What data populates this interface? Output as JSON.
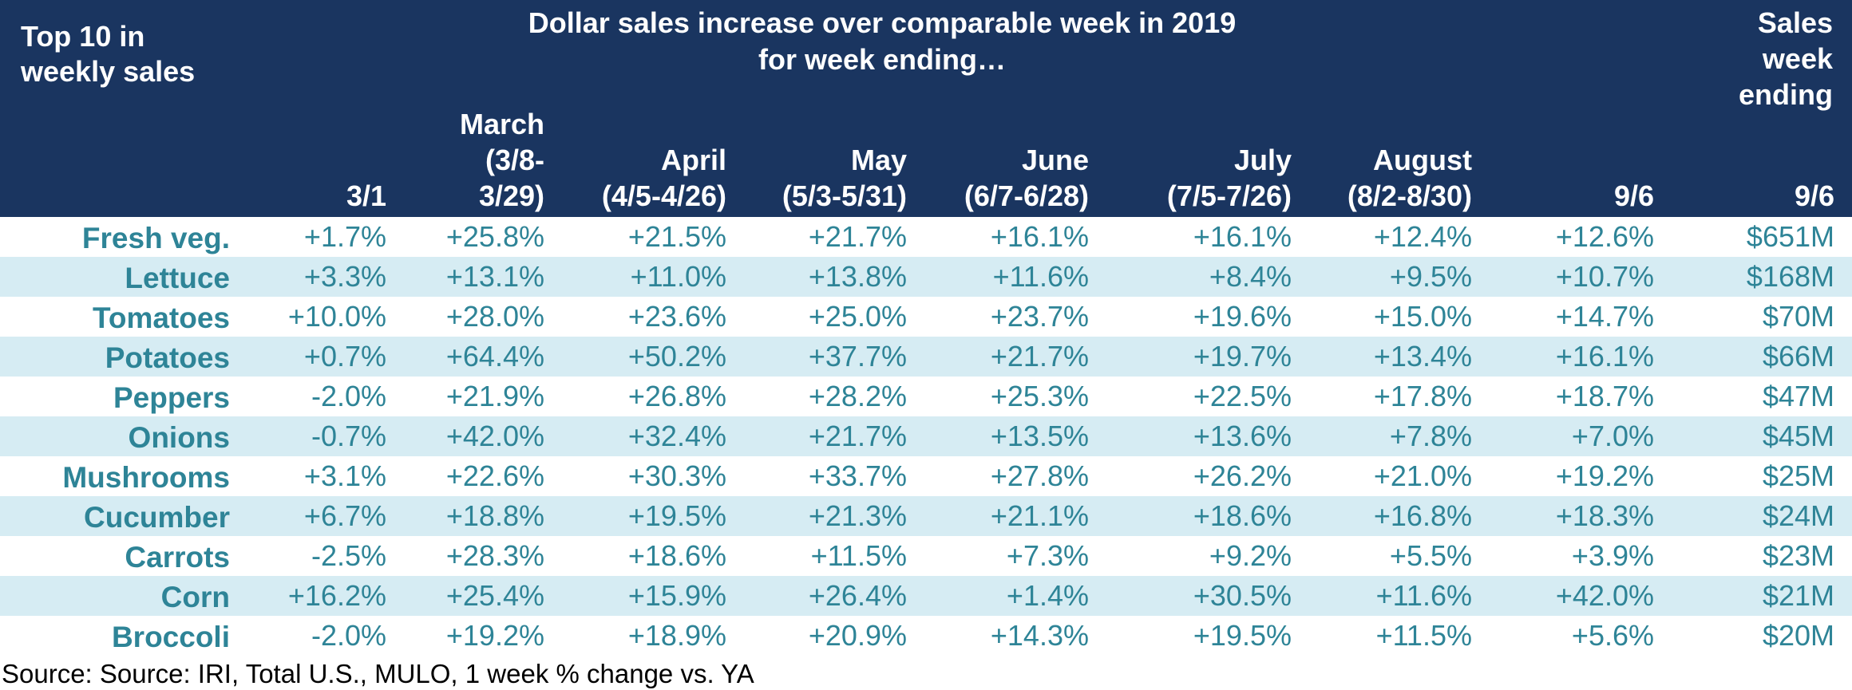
{
  "chart_data": {
    "type": "table",
    "header": {
      "top_left": "Top 10 in\nweekly sales",
      "center": "Dollar sales increase over comparable week in 2019\nfor week ending…",
      "top_right": "Sales\nweek\nending"
    },
    "columns": [
      "3/1",
      "March\n(3/8-\n3/29)",
      "April\n(4/5-4/26)",
      "May\n(5/3-5/31)",
      "June\n(6/7-6/28)",
      "July\n(7/5-7/26)",
      "August\n(8/2-8/30)",
      "9/6",
      "9/6"
    ],
    "rows": [
      {
        "label": "Fresh veg.",
        "values": [
          "+1.7%",
          "+25.8%",
          "+21.5%",
          "+21.7%",
          "+16.1%",
          "+16.1%",
          "+12.4%",
          "+12.6%",
          "$651M"
        ]
      },
      {
        "label": "Lettuce",
        "values": [
          "+3.3%",
          "+13.1%",
          "+11.0%",
          "+13.8%",
          "+11.6%",
          "+8.4%",
          "+9.5%",
          "+10.7%",
          "$168M"
        ]
      },
      {
        "label": "Tomatoes",
        "values": [
          "+10.0%",
          "+28.0%",
          "+23.6%",
          "+25.0%",
          "+23.7%",
          "+19.6%",
          "+15.0%",
          "+14.7%",
          "$70M"
        ]
      },
      {
        "label": "Potatoes",
        "values": [
          "+0.7%",
          "+64.4%",
          "+50.2%",
          "+37.7%",
          "+21.7%",
          "+19.7%",
          "+13.4%",
          "+16.1%",
          "$66M"
        ]
      },
      {
        "label": "Peppers",
        "values": [
          "-2.0%",
          "+21.9%",
          "+26.8%",
          "+28.2%",
          "+25.3%",
          "+22.5%",
          "+17.8%",
          "+18.7%",
          "$47M"
        ]
      },
      {
        "label": "Onions",
        "values": [
          "-0.7%",
          "+42.0%",
          "+32.4%",
          "+21.7%",
          "+13.5%",
          "+13.6%",
          "+7.8%",
          "+7.0%",
          "$45M"
        ]
      },
      {
        "label": "Mushrooms",
        "values": [
          "+3.1%",
          "+22.6%",
          "+30.3%",
          "+33.7%",
          "+27.8%",
          "+26.2%",
          "+21.0%",
          "+19.2%",
          "$25M"
        ]
      },
      {
        "label": "Cucumber",
        "values": [
          "+6.7%",
          "+18.8%",
          "+19.5%",
          "+21.3%",
          "+21.1%",
          "+18.6%",
          "+16.8%",
          "+18.3%",
          "$24M"
        ]
      },
      {
        "label": "Carrots",
        "values": [
          "-2.5%",
          "+28.3%",
          "+18.6%",
          "+11.5%",
          "+7.3%",
          "+9.2%",
          "+5.5%",
          "+3.9%",
          "$23M"
        ]
      },
      {
        "label": "Corn",
        "values": [
          "+16.2%",
          "+25.4%",
          "+15.9%",
          "+26.4%",
          "+1.4%",
          "+30.5%",
          "+11.6%",
          "+42.0%",
          "$21M"
        ]
      },
      {
        "label": "Broccoli",
        "values": [
          "-2.0%",
          "+19.2%",
          "+18.9%",
          "+20.9%",
          "+14.3%",
          "+19.5%",
          "+11.5%",
          "+5.6%",
          "$20M"
        ]
      }
    ],
    "source": "Source: Source: IRI, Total U.S., MULO, 1 week % change vs. YA"
  },
  "colors": {
    "header_bg": "#1a3560",
    "header_text": "#ffffff",
    "value_text": "#2e8497",
    "stripe": "#d6ecf3"
  }
}
